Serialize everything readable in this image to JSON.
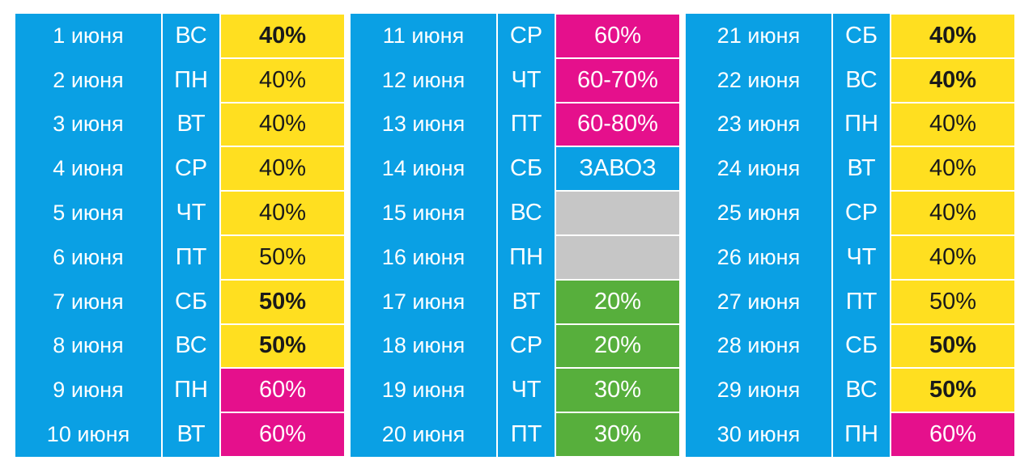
{
  "colors": {
    "blue": "#0aa0e4",
    "yellow": "#ffdf20",
    "magenta": "#e5108c",
    "green": "#57af3c",
    "gray": "#c6c6c6"
  },
  "columns": [
    {
      "rows": [
        {
          "date": "1 июня",
          "day": "ВС",
          "value": "40%",
          "color": "yellow",
          "bold": true
        },
        {
          "date": "2 июня",
          "day": "ПН",
          "value": "40%",
          "color": "yellow",
          "bold": false
        },
        {
          "date": "3 июня",
          "day": "ВТ",
          "value": "40%",
          "color": "yellow",
          "bold": false
        },
        {
          "date": "4 июня",
          "day": "СР",
          "value": "40%",
          "color": "yellow",
          "bold": false
        },
        {
          "date": "5 июня",
          "day": "ЧТ",
          "value": "40%",
          "color": "yellow",
          "bold": false
        },
        {
          "date": "6 июня",
          "day": "ПТ",
          "value": "50%",
          "color": "yellow",
          "bold": false
        },
        {
          "date": "7 июня",
          "day": "СБ",
          "value": "50%",
          "color": "yellow",
          "bold": true
        },
        {
          "date": "8 июня",
          "day": "ВС",
          "value": "50%",
          "color": "yellow",
          "bold": true
        },
        {
          "date": "9 июня",
          "day": "ПН",
          "value": "60%",
          "color": "magenta",
          "bold": false
        },
        {
          "date": "10 июня",
          "day": "ВТ",
          "value": "60%",
          "color": "magenta",
          "bold": false
        }
      ]
    },
    {
      "rows": [
        {
          "date": "11 июня",
          "day": "СР",
          "value": "60%",
          "color": "magenta",
          "bold": false
        },
        {
          "date": "12 июня",
          "day": "ЧТ",
          "value": "60-70%",
          "color": "magenta",
          "bold": false
        },
        {
          "date": "13 июня",
          "day": "ПТ",
          "value": "60-80%",
          "color": "magenta",
          "bold": false
        },
        {
          "date": "14 июня",
          "day": "СБ",
          "value": "ЗАВОЗ",
          "color": "blue",
          "bold": false
        },
        {
          "date": "15 июня",
          "day": "ВС",
          "value": "",
          "color": "gray",
          "bold": false
        },
        {
          "date": "16 июня",
          "day": "ПН",
          "value": "",
          "color": "gray",
          "bold": false
        },
        {
          "date": "17 июня",
          "day": "ВТ",
          "value": "20%",
          "color": "green",
          "bold": false
        },
        {
          "date": "18 июня",
          "day": "СР",
          "value": "20%",
          "color": "green",
          "bold": false
        },
        {
          "date": "19 июня",
          "day": "ЧТ",
          "value": "30%",
          "color": "green",
          "bold": false
        },
        {
          "date": "20 июня",
          "day": "ПТ",
          "value": "30%",
          "color": "green",
          "bold": false
        }
      ]
    },
    {
      "rows": [
        {
          "date": "21 июня",
          "day": "СБ",
          "value": "40%",
          "color": "yellow",
          "bold": true
        },
        {
          "date": "22 июня",
          "day": "ВС",
          "value": "40%",
          "color": "yellow",
          "bold": true
        },
        {
          "date": "23 июня",
          "day": "ПН",
          "value": "40%",
          "color": "yellow",
          "bold": false
        },
        {
          "date": "24 июня",
          "day": "ВТ",
          "value": "40%",
          "color": "yellow",
          "bold": false
        },
        {
          "date": "25 июня",
          "day": "СР",
          "value": "40%",
          "color": "yellow",
          "bold": false
        },
        {
          "date": "26 июня",
          "day": "ЧТ",
          "value": "40%",
          "color": "yellow",
          "bold": false
        },
        {
          "date": "27 июня",
          "day": "ПТ",
          "value": "50%",
          "color": "yellow",
          "bold": false
        },
        {
          "date": "28 июня",
          "day": "СБ",
          "value": "50%",
          "color": "yellow",
          "bold": true
        },
        {
          "date": "29 июня",
          "day": "ВС",
          "value": "50%",
          "color": "yellow",
          "bold": true
        },
        {
          "date": "30 июня",
          "day": "ПН",
          "value": "60%",
          "color": "magenta",
          "bold": false
        }
      ]
    }
  ]
}
